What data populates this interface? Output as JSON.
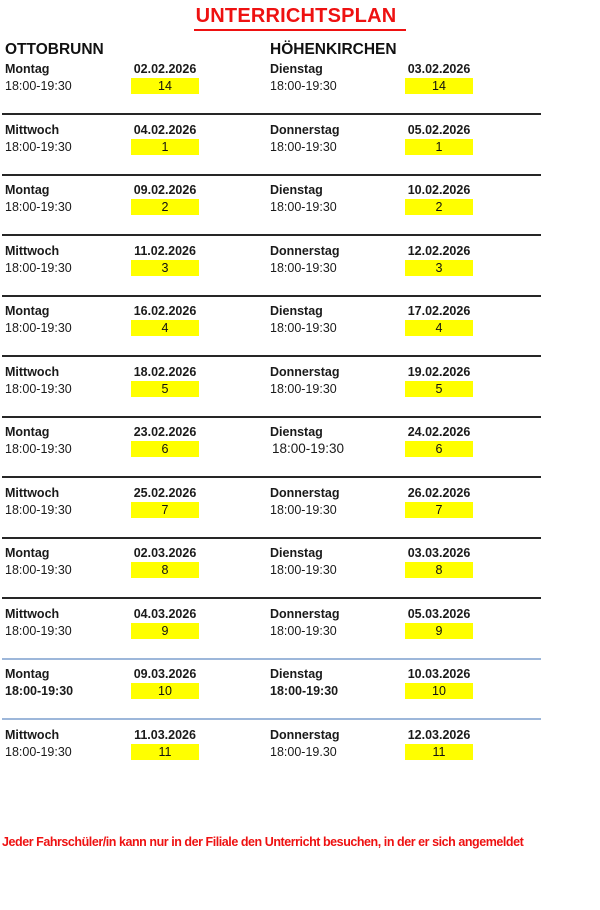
{
  "title": "UNTERRICHTSPLAN",
  "locations": [
    {
      "name": "OTTOBRUNN"
    },
    {
      "name": "HÖHENKIRCHEN"
    }
  ],
  "colors": {
    "accent_red": "#ee1111",
    "highlight_yellow": "#ffff00",
    "divider_black": "#262626",
    "divider_blue": "#9db7da"
  },
  "rows": [
    {
      "left": {
        "day": "Montag",
        "date": "02.02.2026",
        "time": "18:00-19:30",
        "lesson": "14"
      },
      "right": {
        "day": "Dienstag",
        "date": "03.02.2026",
        "time": "18:00-19:30",
        "lesson": "14"
      },
      "divider_after": "black",
      "time_bold": false,
      "right_time_large": false
    },
    {
      "left": {
        "day": "Mittwoch",
        "date": "04.02.2026",
        "time": "18:00-19:30",
        "lesson": "1"
      },
      "right": {
        "day": "Donnerstag",
        "date": "05.02.2026",
        "time": "18:00-19:30",
        "lesson": "1"
      },
      "divider_after": "black",
      "time_bold": false,
      "right_time_large": false
    },
    {
      "left": {
        "day": "Montag",
        "date": "09.02.2026",
        "time": "18:00-19:30",
        "lesson": "2"
      },
      "right": {
        "day": "Dienstag",
        "date": "10.02.2026",
        "time": "18:00-19:30",
        "lesson": "2"
      },
      "divider_after": "black",
      "time_bold": false,
      "right_time_large": false
    },
    {
      "left": {
        "day": "Mittwoch",
        "date": "11.02.2026",
        "time": "18:00-19:30",
        "lesson": "3"
      },
      "right": {
        "day": "Donnerstag",
        "date": "12.02.2026",
        "time": "18:00-19:30",
        "lesson": "3"
      },
      "divider_after": "black",
      "time_bold": false,
      "right_time_large": false
    },
    {
      "left": {
        "day": "Montag",
        "date": "16.02.2026",
        "time": "18:00-19:30",
        "lesson": "4"
      },
      "right": {
        "day": "Dienstag",
        "date": "17.02.2026",
        "time": "18:00-19:30",
        "lesson": "4"
      },
      "divider_after": "black",
      "time_bold": false,
      "right_time_large": false
    },
    {
      "left": {
        "day": "Mittwoch",
        "date": "18.02.2026",
        "time": "18:00-19:30",
        "lesson": "5"
      },
      "right": {
        "day": "Donnerstag",
        "date": "19.02.2026",
        "time": "18:00-19:30",
        "lesson": "5"
      },
      "divider_after": "black",
      "time_bold": false,
      "right_time_large": false
    },
    {
      "left": {
        "day": "Montag",
        "date": "23.02.2026",
        "time": "18:00-19:30",
        "lesson": "6"
      },
      "right": {
        "day": "Dienstag",
        "date": "24.02.2026",
        "time": "18:00-19:30",
        "lesson": "6"
      },
      "divider_after": "black",
      "time_bold": false,
      "right_time_large": true
    },
    {
      "left": {
        "day": "Mittwoch",
        "date": "25.02.2026",
        "time": "18:00-19:30",
        "lesson": "7"
      },
      "right": {
        "day": "Donnerstag",
        "date": "26.02.2026",
        "time": "18:00-19:30",
        "lesson": "7"
      },
      "divider_after": "black",
      "time_bold": false,
      "right_time_large": false
    },
    {
      "left": {
        "day": "Montag",
        "date": "02.03.2026",
        "time": "18:00-19:30",
        "lesson": "8"
      },
      "right": {
        "day": "Dienstag",
        "date": "03.03.2026",
        "time": "18:00-19:30",
        "lesson": "8"
      },
      "divider_after": "black",
      "time_bold": false,
      "right_time_large": false
    },
    {
      "left": {
        "day": "Mittwoch",
        "date": "04.03.2026",
        "time": "18:00-19:30",
        "lesson": "9"
      },
      "right": {
        "day": "Donnerstag",
        "date": "05.03.2026",
        "time": "18:00-19:30",
        "lesson": "9"
      },
      "divider_after": "blue",
      "time_bold": false,
      "right_time_large": false
    },
    {
      "left": {
        "day": "Montag",
        "date": "09.03.2026",
        "time": "18:00-19:30",
        "lesson": "10"
      },
      "right": {
        "day": "Dienstag",
        "date": "10.03.2026",
        "time": "18:00-19:30",
        "lesson": "10"
      },
      "divider_after": "blue",
      "time_bold": true,
      "right_time_large": false
    },
    {
      "left": {
        "day": "Mittwoch",
        "date": "11.03.2026",
        "time": "18:00-19:30",
        "lesson": "11"
      },
      "right": {
        "day": "Donnerstag",
        "date": "12.03.2026",
        "time": "18:00-19.30",
        "lesson": "11"
      },
      "divider_after": "none",
      "time_bold": false,
      "right_time_large": false
    }
  ],
  "note": "Jeder Fahrschüler/in kann nur in der Filiale den Unterricht besuchen, in der er sich angemeldet"
}
